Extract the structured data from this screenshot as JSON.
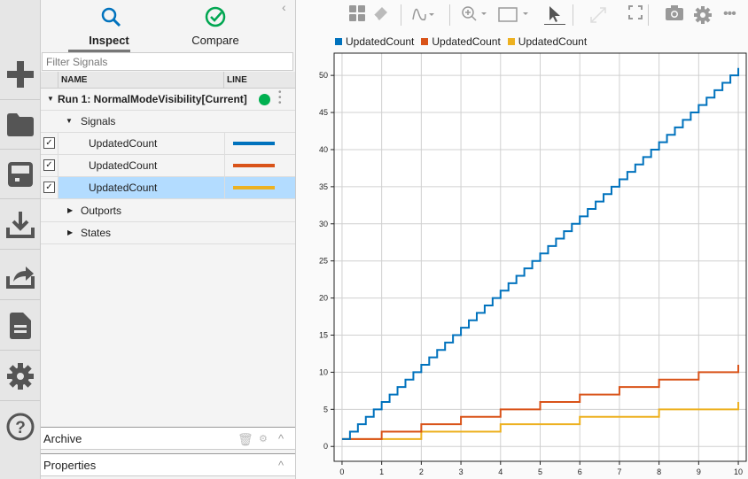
{
  "sidebar": {
    "items": [
      {
        "icon": "plus-icon",
        "label": "New"
      },
      {
        "icon": "folder-icon",
        "label": "Open"
      },
      {
        "icon": "save-icon",
        "label": "Save"
      },
      {
        "icon": "import-icon",
        "label": "Import"
      },
      {
        "icon": "export-icon",
        "label": "Export"
      },
      {
        "icon": "report-icon",
        "label": "Report"
      },
      {
        "icon": "settings-icon",
        "label": "Preferences"
      },
      {
        "icon": "help-icon",
        "label": "Help"
      }
    ]
  },
  "panel": {
    "tabs": [
      {
        "label": "Inspect",
        "icon": "search-icon",
        "active": true
      },
      {
        "label": "Compare",
        "icon": "check-circle-icon",
        "active": false
      }
    ],
    "filter_placeholder": "Filter Signals",
    "columns": {
      "name": "NAME",
      "line": "LINE"
    },
    "run": {
      "label": "Run 1: NormalModeVisibility[Current]",
      "status_color": "#00b050"
    },
    "groups": {
      "signals": "Signals",
      "outports": "Outports",
      "states": "States"
    },
    "signals": [
      {
        "name": "UpdatedCount",
        "checked": true,
        "color": "#0072bd",
        "selected": false
      },
      {
        "name": "UpdatedCount",
        "checked": true,
        "color": "#d95319",
        "selected": false
      },
      {
        "name": "UpdatedCount",
        "checked": true,
        "color": "#edb120",
        "selected": true
      }
    ],
    "archive": "Archive",
    "properties": "Properties"
  },
  "chart_data": {
    "type": "line",
    "step": true,
    "xlim": [
      -0.2,
      10.2
    ],
    "ylim": [
      -2,
      53
    ],
    "xticks": [
      0,
      1,
      2,
      3,
      4,
      5,
      6,
      7,
      8,
      9,
      10
    ],
    "yticks": [
      0,
      5,
      10,
      15,
      20,
      25,
      30,
      35,
      40,
      45,
      50
    ],
    "grid": true,
    "legend_placement": "top-left",
    "series": [
      {
        "name": "UpdatedCount",
        "color": "#0072bd",
        "x": [
          0,
          0.2,
          0.4,
          0.6,
          0.8,
          1,
          1.2,
          1.4,
          1.6,
          1.8,
          2,
          2.2,
          2.4,
          2.6,
          2.8,
          3,
          3.2,
          3.4,
          3.6,
          3.8,
          4,
          4.2,
          4.4,
          4.6,
          4.8,
          5,
          5.2,
          5.4,
          5.6,
          5.8,
          6,
          6.2,
          6.4,
          6.6,
          6.8,
          7,
          7.2,
          7.4,
          7.6,
          7.8,
          8,
          8.2,
          8.4,
          8.6,
          8.8,
          9,
          9.2,
          9.4,
          9.6,
          9.8,
          10
        ],
        "y": [
          1,
          2,
          3,
          4,
          5,
          6,
          7,
          8,
          9,
          10,
          11,
          12,
          13,
          14,
          15,
          16,
          17,
          18,
          19,
          20,
          21,
          22,
          23,
          24,
          25,
          26,
          27,
          28,
          29,
          30,
          31,
          32,
          33,
          34,
          35,
          36,
          37,
          38,
          39,
          40,
          41,
          42,
          43,
          44,
          45,
          46,
          47,
          48,
          49,
          50,
          51
        ]
      },
      {
        "name": "UpdatedCount",
        "color": "#d95319",
        "x": [
          0,
          1,
          2,
          3,
          4,
          5,
          6,
          7,
          8,
          9,
          10
        ],
        "y": [
          1,
          2,
          3,
          4,
          5,
          6,
          7,
          8,
          9,
          10,
          11
        ]
      },
      {
        "name": "UpdatedCount",
        "color": "#edb120",
        "x": [
          0,
          2,
          4,
          6,
          8,
          10
        ],
        "y": [
          1,
          2,
          3,
          4,
          5,
          6
        ]
      }
    ]
  }
}
